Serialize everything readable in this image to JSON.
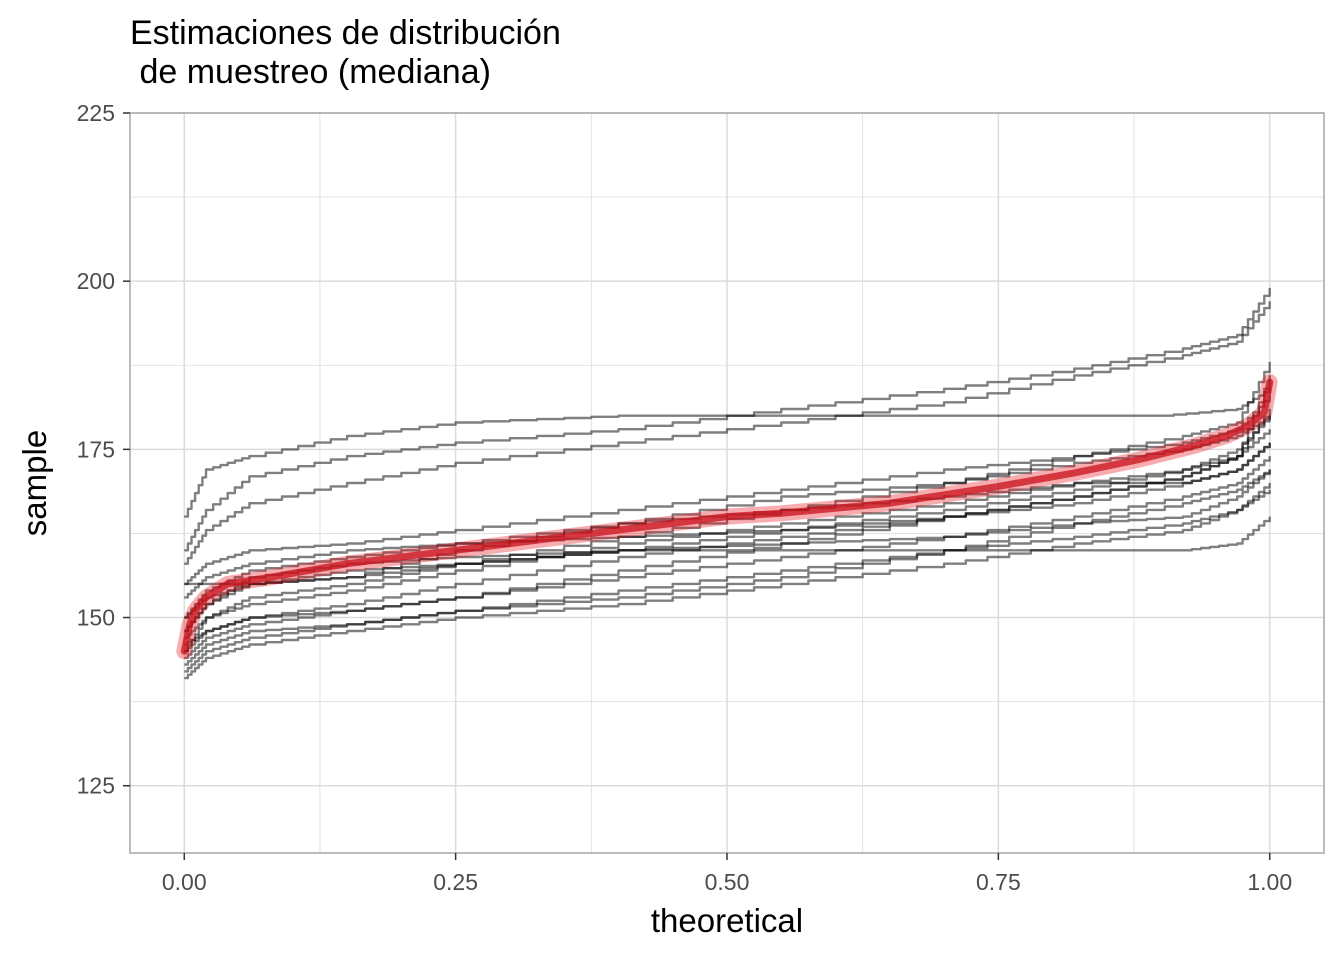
{
  "chart_data": {
    "type": "scatter",
    "title": "Estimaciones de distribución\n de muestreo (mediana)",
    "xlabel": "theoretical",
    "ylabel": "sample",
    "xlim": [
      -0.05,
      1.05
    ],
    "ylim": [
      115,
      225
    ],
    "x_ticks": [
      "0.00",
      "0.25",
      "0.50",
      "0.75",
      "1.00"
    ],
    "y_ticks": [
      "125",
      "150",
      "175",
      "200",
      "225"
    ],
    "grid": true,
    "colors": {
      "sample_lines": "#000000",
      "highlight": "#e8141e",
      "grid": "#dcdcdc",
      "panel_border": "#a6a6a6"
    },
    "series": [
      {
        "values": [
          [
            0.0,
            165
          ],
          [
            0.02,
            172
          ],
          [
            0.06,
            174
          ],
          [
            0.15,
            177
          ],
          [
            0.25,
            179
          ],
          [
            0.4,
            180
          ],
          [
            0.55,
            180
          ],
          [
            0.7,
            180
          ],
          [
            0.8,
            180
          ],
          [
            0.9,
            180
          ],
          [
            0.97,
            181
          ],
          [
            1.0,
            184
          ]
        ]
      },
      {
        "values": [
          [
            0.0,
            160
          ],
          [
            0.02,
            166
          ],
          [
            0.06,
            171
          ],
          [
            0.15,
            174
          ],
          [
            0.25,
            176
          ],
          [
            0.4,
            178
          ],
          [
            0.55,
            181
          ],
          [
            0.7,
            184
          ],
          [
            0.82,
            187
          ],
          [
            0.92,
            190
          ],
          [
            0.97,
            192
          ],
          [
            1.0,
            199
          ]
        ]
      },
      {
        "values": [
          [
            0.0,
            158
          ],
          [
            0.02,
            163
          ],
          [
            0.06,
            167
          ],
          [
            0.15,
            170
          ],
          [
            0.25,
            173
          ],
          [
            0.4,
            176
          ],
          [
            0.55,
            179
          ],
          [
            0.7,
            182
          ],
          [
            0.82,
            186
          ],
          [
            0.92,
            189
          ],
          [
            0.97,
            191
          ],
          [
            1.0,
            197
          ]
        ]
      },
      {
        "values": [
          [
            0.0,
            155
          ],
          [
            0.02,
            158
          ],
          [
            0.06,
            160
          ],
          [
            0.15,
            161
          ],
          [
            0.25,
            163
          ],
          [
            0.4,
            166
          ],
          [
            0.55,
            169
          ],
          [
            0.7,
            172
          ],
          [
            0.82,
            174
          ],
          [
            0.92,
            177
          ],
          [
            0.97,
            179
          ],
          [
            1.0,
            188
          ]
        ]
      },
      {
        "values": [
          [
            0.0,
            153
          ],
          [
            0.02,
            156
          ],
          [
            0.06,
            158
          ],
          [
            0.15,
            160
          ],
          [
            0.25,
            161
          ],
          [
            0.4,
            162
          ],
          [
            0.55,
            163
          ],
          [
            0.7,
            165
          ],
          [
            0.82,
            168
          ],
          [
            0.92,
            171
          ],
          [
            0.97,
            174
          ],
          [
            1.0,
            181
          ]
        ]
      },
      {
        "values": [
          [
            0.0,
            150
          ],
          [
            0.02,
            153
          ],
          [
            0.06,
            155
          ],
          [
            0.15,
            156
          ],
          [
            0.25,
            158
          ],
          [
            0.4,
            162
          ],
          [
            0.55,
            166
          ],
          [
            0.7,
            170
          ],
          [
            0.82,
            174
          ],
          [
            0.92,
            176
          ],
          [
            0.97,
            178
          ],
          [
            1.0,
            183
          ]
        ]
      },
      {
        "values": [
          [
            0.0,
            155
          ],
          [
            0.02,
            155
          ],
          [
            0.06,
            155
          ],
          [
            0.15,
            156
          ],
          [
            0.25,
            160
          ],
          [
            0.4,
            164
          ],
          [
            0.55,
            168
          ],
          [
            0.7,
            170
          ],
          [
            0.82,
            173
          ],
          [
            0.92,
            175
          ],
          [
            0.97,
            177
          ],
          [
            1.0,
            180
          ]
        ]
      },
      {
        "values": [
          [
            0.0,
            148
          ],
          [
            0.02,
            152
          ],
          [
            0.06,
            155
          ],
          [
            0.15,
            157
          ],
          [
            0.25,
            158
          ],
          [
            0.4,
            160
          ],
          [
            0.55,
            163
          ],
          [
            0.7,
            166
          ],
          [
            0.82,
            169
          ],
          [
            0.92,
            172
          ],
          [
            0.97,
            175
          ],
          [
            1.0,
            180
          ]
        ]
      },
      {
        "values": [
          [
            0.0,
            147
          ],
          [
            0.02,
            150
          ],
          [
            0.06,
            152
          ],
          [
            0.15,
            154
          ],
          [
            0.25,
            157
          ],
          [
            0.4,
            161
          ],
          [
            0.55,
            164
          ],
          [
            0.7,
            167
          ],
          [
            0.82,
            170
          ],
          [
            0.92,
            172
          ],
          [
            0.97,
            174
          ],
          [
            1.0,
            178
          ]
        ]
      },
      {
        "values": [
          [
            0.0,
            146
          ],
          [
            0.02,
            148
          ],
          [
            0.06,
            150
          ],
          [
            0.15,
            151
          ],
          [
            0.25,
            153
          ],
          [
            0.4,
            157
          ],
          [
            0.55,
            161
          ],
          [
            0.7,
            165
          ],
          [
            0.82,
            168
          ],
          [
            0.92,
            171
          ],
          [
            0.97,
            174
          ],
          [
            1.0,
            186
          ]
        ]
      },
      {
        "values": [
          [
            0.0,
            145
          ],
          [
            0.02,
            148
          ],
          [
            0.06,
            150
          ],
          [
            0.15,
            152
          ],
          [
            0.25,
            155
          ],
          [
            0.4,
            159
          ],
          [
            0.55,
            162
          ],
          [
            0.7,
            165
          ],
          [
            0.82,
            167
          ],
          [
            0.92,
            170
          ],
          [
            0.97,
            172
          ],
          [
            1.0,
            176
          ]
        ]
      },
      {
        "values": [
          [
            0.0,
            144
          ],
          [
            0.02,
            147
          ],
          [
            0.06,
            149
          ],
          [
            0.15,
            151
          ],
          [
            0.25,
            153
          ],
          [
            0.4,
            156
          ],
          [
            0.55,
            159
          ],
          [
            0.7,
            162
          ],
          [
            0.82,
            165
          ],
          [
            0.92,
            168
          ],
          [
            0.97,
            170
          ],
          [
            1.0,
            174
          ]
        ]
      },
      {
        "values": [
          [
            0.0,
            143
          ],
          [
            0.02,
            146
          ],
          [
            0.06,
            148
          ],
          [
            0.15,
            149
          ],
          [
            0.25,
            151
          ],
          [
            0.4,
            153
          ],
          [
            0.55,
            156
          ],
          [
            0.7,
            160
          ],
          [
            0.82,
            164
          ],
          [
            0.92,
            167
          ],
          [
            0.97,
            169
          ],
          [
            1.0,
            172
          ]
        ]
      },
      {
        "values": [
          [
            0.0,
            142
          ],
          [
            0.02,
            145
          ],
          [
            0.06,
            147
          ],
          [
            0.15,
            149
          ],
          [
            0.25,
            151
          ],
          [
            0.4,
            154
          ],
          [
            0.55,
            157
          ],
          [
            0.7,
            160
          ],
          [
            0.82,
            162
          ],
          [
            0.92,
            164
          ],
          [
            0.97,
            166
          ],
          [
            1.0,
            170
          ]
        ]
      },
      {
        "values": [
          [
            0.0,
            141
          ],
          [
            0.02,
            144
          ],
          [
            0.06,
            146
          ],
          [
            0.15,
            148
          ],
          [
            0.25,
            150
          ],
          [
            0.4,
            152
          ],
          [
            0.55,
            155
          ],
          [
            0.7,
            158
          ],
          [
            0.82,
            161
          ],
          [
            0.92,
            163
          ],
          [
            0.97,
            166
          ],
          [
            1.0,
            169
          ]
        ]
      },
      {
        "values": [
          [
            0.0,
            148
          ],
          [
            0.02,
            152
          ],
          [
            0.06,
            156
          ],
          [
            0.15,
            158
          ],
          [
            0.25,
            159
          ],
          [
            0.4,
            160
          ],
          [
            0.55,
            160
          ],
          [
            0.7,
            160
          ],
          [
            0.82,
            160
          ],
          [
            0.92,
            160
          ],
          [
            0.97,
            161
          ],
          [
            1.0,
            165
          ]
        ]
      },
      {
        "values": [
          [
            0.0,
            150
          ],
          [
            0.02,
            154
          ],
          [
            0.06,
            157
          ],
          [
            0.15,
            159
          ],
          [
            0.25,
            161
          ],
          [
            0.4,
            164
          ],
          [
            0.55,
            166
          ],
          [
            0.7,
            168
          ],
          [
            0.82,
            170
          ],
          [
            0.92,
            170
          ],
          [
            0.97,
            172
          ],
          [
            1.0,
            176
          ]
        ]
      },
      {
        "values": [
          [
            0.0,
            145
          ],
          [
            0.02,
            150
          ],
          [
            0.06,
            153
          ],
          [
            0.15,
            155
          ],
          [
            0.25,
            158
          ],
          [
            0.4,
            160
          ],
          [
            0.55,
            161
          ],
          [
            0.7,
            162
          ],
          [
            0.82,
            164
          ],
          [
            0.92,
            165
          ],
          [
            0.97,
            168
          ],
          [
            1.0,
            172
          ]
        ]
      }
    ],
    "highlight_series": {
      "values": [
        [
          0.0,
          145
        ],
        [
          0.005,
          149
        ],
        [
          0.01,
          151
        ],
        [
          0.02,
          153
        ],
        [
          0.04,
          155
        ],
        [
          0.08,
          156
        ],
        [
          0.15,
          158
        ],
        [
          0.25,
          160
        ],
        [
          0.35,
          162
        ],
        [
          0.45,
          164
        ],
        [
          0.5,
          165
        ],
        [
          0.55,
          165.5
        ],
        [
          0.65,
          167
        ],
        [
          0.75,
          169.5
        ],
        [
          0.82,
          171.5
        ],
        [
          0.88,
          173.5
        ],
        [
          0.93,
          175.5
        ],
        [
          0.96,
          177
        ],
        [
          0.98,
          178.5
        ],
        [
          0.995,
          180.5
        ],
        [
          1.0,
          185
        ]
      ]
    }
  }
}
